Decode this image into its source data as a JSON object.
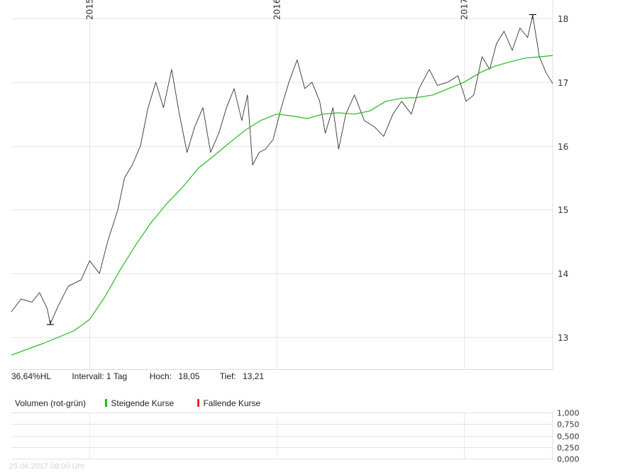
{
  "chart_data": [
    {
      "type": "line",
      "title": "",
      "xlabel": "",
      "ylabel": "",
      "x_tick_labels": [
        "2015",
        "2016",
        "2017"
      ],
      "y_ticks": [
        13,
        14,
        15,
        16,
        17,
        18
      ],
      "y_tick_labels": [
        "13",
        "14",
        "15",
        "16",
        "17",
        "18"
      ],
      "ylim": [
        12.5,
        18.2
      ],
      "xlim": [
        "2014-08-01",
        "2017-06-23"
      ],
      "grid": true,
      "legend": "none",
      "series": [
        {
          "color": "#333333",
          "points": [
            [
              "2014-08-01",
              13.4
            ],
            [
              "2014-08-20",
              13.6
            ],
            [
              "2014-09-10",
              13.55
            ],
            [
              "2014-09-25",
              13.7
            ],
            [
              "2014-10-10",
              13.45
            ],
            [
              "2014-10-16",
              13.21
            ],
            [
              "2014-11-01",
              13.5
            ],
            [
              "2014-11-20",
              13.8
            ],
            [
              "2014-12-15",
              13.9
            ],
            [
              "2015-01-01",
              14.2
            ],
            [
              "2015-01-20",
              14.0
            ],
            [
              "2015-02-05",
              14.5
            ],
            [
              "2015-02-25",
              15.0
            ],
            [
              "2015-03-10",
              15.5
            ],
            [
              "2015-03-25",
              15.7
            ],
            [
              "2015-04-10",
              16.0
            ],
            [
              "2015-04-25",
              16.6
            ],
            [
              "2015-05-10",
              17.0
            ],
            [
              "2015-05-25",
              16.6
            ],
            [
              "2015-06-10",
              17.2
            ],
            [
              "2015-06-25",
              16.5
            ],
            [
              "2015-07-10",
              15.9
            ],
            [
              "2015-07-25",
              16.3
            ],
            [
              "2015-08-10",
              16.6
            ],
            [
              "2015-08-25",
              15.9
            ],
            [
              "2015-09-10",
              16.2
            ],
            [
              "2015-09-25",
              16.6
            ],
            [
              "2015-10-10",
              16.9
            ],
            [
              "2015-10-25",
              16.4
            ],
            [
              "2015-11-05",
              16.8
            ],
            [
              "2015-11-15",
              15.7
            ],
            [
              "2015-11-28",
              15.9
            ],
            [
              "2015-12-10",
              15.95
            ],
            [
              "2015-12-25",
              16.1
            ],
            [
              "2016-01-10",
              16.6
            ],
            [
              "2016-01-25",
              17.0
            ],
            [
              "2016-02-10",
              17.35
            ],
            [
              "2016-02-25",
              16.9
            ],
            [
              "2016-03-10",
              17.0
            ],
            [
              "2016-03-25",
              16.7
            ],
            [
              "2016-04-05",
              16.2
            ],
            [
              "2016-04-20",
              16.6
            ],
            [
              "2016-05-01",
              15.95
            ],
            [
              "2016-05-15",
              16.5
            ],
            [
              "2016-06-01",
              16.8
            ],
            [
              "2016-06-20",
              16.4
            ],
            [
              "2016-07-10",
              16.3
            ],
            [
              "2016-07-28",
              16.15
            ],
            [
              "2016-08-15",
              16.5
            ],
            [
              "2016-09-01",
              16.7
            ],
            [
              "2016-09-20",
              16.5
            ],
            [
              "2016-10-05",
              16.9
            ],
            [
              "2016-10-25",
              17.2
            ],
            [
              "2016-11-10",
              16.95
            ],
            [
              "2016-11-30",
              17.0
            ],
            [
              "2016-12-20",
              17.1
            ],
            [
              "2017-01-05",
              16.7
            ],
            [
              "2017-01-20",
              16.8
            ],
            [
              "2017-02-05",
              17.4
            ],
            [
              "2017-02-20",
              17.2
            ],
            [
              "2017-03-05",
              17.6
            ],
            [
              "2017-03-20",
              17.8
            ],
            [
              "2017-04-05",
              17.5
            ],
            [
              "2017-04-20",
              17.85
            ],
            [
              "2017-05-05",
              17.7
            ],
            [
              "2017-05-15",
              18.05
            ],
            [
              "2017-05-28",
              17.4
            ],
            [
              "2017-06-10",
              17.15
            ],
            [
              "2017-06-23",
              16.98
            ]
          ]
        },
        {
          "color": "#22bb22",
          "points": [
            [
              "2014-08-01",
              12.72
            ],
            [
              "2014-10-01",
              12.9
            ],
            [
              "2014-12-01",
              13.1
            ],
            [
              "2015-01-01",
              13.28
            ],
            [
              "2015-02-01",
              13.65
            ],
            [
              "2015-03-01",
              14.05
            ],
            [
              "2015-04-01",
              14.45
            ],
            [
              "2015-05-01",
              14.8
            ],
            [
              "2015-06-01",
              15.1
            ],
            [
              "2015-07-01",
              15.35
            ],
            [
              "2015-08-01",
              15.65
            ],
            [
              "2015-09-01",
              15.85
            ],
            [
              "2015-10-01",
              16.05
            ],
            [
              "2015-11-01",
              16.25
            ],
            [
              "2015-12-01",
              16.4
            ],
            [
              "2016-01-01",
              16.5
            ],
            [
              "2016-02-01",
              16.47
            ],
            [
              "2016-03-01",
              16.43
            ],
            [
              "2016-04-01",
              16.5
            ],
            [
              "2016-05-01",
              16.52
            ],
            [
              "2016-06-01",
              16.5
            ],
            [
              "2016-07-01",
              16.55
            ],
            [
              "2016-08-01",
              16.7
            ],
            [
              "2016-09-01",
              16.75
            ],
            [
              "2016-10-01",
              16.76
            ],
            [
              "2016-11-01",
              16.8
            ],
            [
              "2016-12-01",
              16.9
            ],
            [
              "2017-01-01",
              17.0
            ],
            [
              "2017-02-01",
              17.15
            ],
            [
              "2017-03-01",
              17.25
            ],
            [
              "2017-04-01",
              17.32
            ],
            [
              "2017-05-01",
              17.38
            ],
            [
              "2017-06-01",
              17.4
            ],
            [
              "2017-06-23",
              17.42
            ]
          ]
        }
      ],
      "markers": [
        {
          "label": "low",
          "x": "2014-10-16",
          "y": 13.21
        },
        {
          "label": "high",
          "x": "2017-05-15",
          "y": 18.05
        }
      ]
    },
    {
      "type": "bar",
      "title": "",
      "y_ticks": [
        0,
        0.25,
        0.5,
        0.75,
        1.0
      ],
      "y_tick_labels": [
        "0,000",
        "0,250",
        "0,500",
        "0,750",
        "1,000"
      ],
      "ylim": [
        0,
        1
      ],
      "grid": true,
      "values": []
    }
  ],
  "stats": {
    "range": "36,64%HL",
    "interval": "Intervall: 1 Tag",
    "high_label": "Hoch:",
    "high_value": "18,05",
    "low_label": "Tief:",
    "low_value": "13,21"
  },
  "volume_legend": {
    "title": "Volumen (rot-grün)",
    "rising": "Steigende Kurse",
    "falling": "Fallende Kurse",
    "rising_color": "#22bb22",
    "falling_color": "#e03030"
  },
  "footer": {
    "timestamp": "25.06.2017 08:00 Uhr"
  }
}
